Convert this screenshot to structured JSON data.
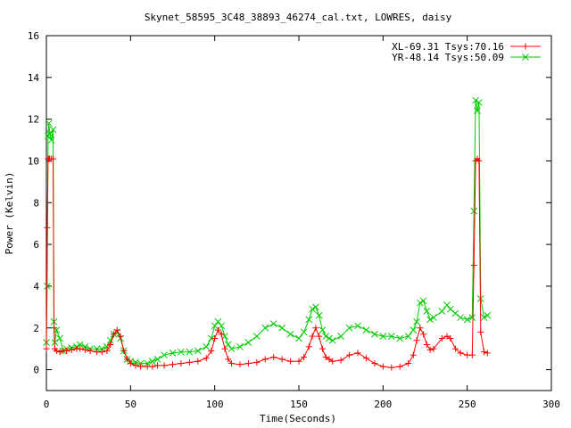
{
  "chart_data": {
    "type": "line",
    "title": "Skynet_58595_3C48_38893_46274_cal.txt, LOWRES, daisy",
    "xlabel": "Time(Seconds)",
    "ylabel": "Power (Kelvin)",
    "xlim": [
      0,
      300
    ],
    "ylim": [
      -1,
      16
    ],
    "xticks": [
      0,
      50,
      100,
      150,
      200,
      250,
      300
    ],
    "yticks": [
      0,
      2,
      4,
      6,
      8,
      10,
      12,
      14,
      16
    ],
    "grid": false,
    "legend_position": "top-right",
    "series": [
      {
        "name": "XL-69.31 Tsys:70.16",
        "color": "#ff0000",
        "marker": "plus",
        "x": [
          0,
          0.5,
          1,
          1.5,
          2,
          3,
          4,
          4.5,
          5,
          6,
          8,
          10,
          12,
          15,
          18,
          20,
          23,
          26,
          30,
          33,
          36,
          38,
          40,
          42,
          44,
          46,
          48,
          50,
          53,
          56,
          60,
          63,
          66,
          70,
          75,
          80,
          85,
          90,
          95,
          98,
          100,
          102,
          104,
          106,
          108,
          110,
          115,
          120,
          125,
          130,
          135,
          140,
          145,
          150,
          153,
          156,
          158,
          160,
          162,
          164,
          166,
          168,
          170,
          175,
          180,
          185,
          190,
          195,
          200,
          205,
          210,
          215,
          218,
          220,
          222,
          224,
          226,
          228,
          230,
          235,
          238,
          240,
          243,
          246,
          250,
          253,
          254,
          255,
          256,
          257,
          258,
          260,
          262
        ],
        "y": [
          1.0,
          6.8,
          10.1,
          10.1,
          10.1,
          10.1,
          10.1,
          2.0,
          1.0,
          0.9,
          0.85,
          0.9,
          0.9,
          0.95,
          1.0,
          1.0,
          0.95,
          0.9,
          0.85,
          0.85,
          0.9,
          1.2,
          1.7,
          1.9,
          1.6,
          0.9,
          0.5,
          0.3,
          0.2,
          0.15,
          0.15,
          0.15,
          0.2,
          0.2,
          0.25,
          0.3,
          0.35,
          0.4,
          0.55,
          0.9,
          1.5,
          1.9,
          1.7,
          1.0,
          0.5,
          0.3,
          0.25,
          0.3,
          0.35,
          0.5,
          0.6,
          0.5,
          0.4,
          0.4,
          0.6,
          1.1,
          1.6,
          2.0,
          1.6,
          1.0,
          0.6,
          0.5,
          0.4,
          0.45,
          0.7,
          0.8,
          0.55,
          0.3,
          0.15,
          0.1,
          0.15,
          0.3,
          0.7,
          1.4,
          2.0,
          1.7,
          1.2,
          0.95,
          1.0,
          1.5,
          1.6,
          1.5,
          1.0,
          0.8,
          0.7,
          0.7,
          5.0,
          10.0,
          10.1,
          10.0,
          1.8,
          0.85,
          0.8
        ]
      },
      {
        "name": "YR-48.14 Tsys:50.09",
        "color": "#00cc00",
        "marker": "cross",
        "x": [
          0,
          0.5,
          1,
          1.5,
          2,
          3,
          4,
          4.5,
          5,
          6,
          8,
          10,
          12,
          15,
          18,
          20,
          23,
          26,
          30,
          33,
          36,
          38,
          40,
          42,
          44,
          46,
          48,
          50,
          53,
          56,
          60,
          63,
          66,
          70,
          75,
          80,
          85,
          90,
          95,
          98,
          100,
          102,
          104,
          106,
          108,
          110,
          115,
          120,
          125,
          130,
          135,
          140,
          145,
          150,
          153,
          156,
          158,
          160,
          162,
          164,
          166,
          168,
          170,
          175,
          180,
          185,
          190,
          195,
          200,
          205,
          210,
          215,
          218,
          220,
          222,
          224,
          226,
          228,
          230,
          235,
          238,
          240,
          243,
          246,
          250,
          253,
          254,
          255,
          256,
          257,
          258,
          260,
          262
        ],
        "y": [
          1.3,
          4.0,
          11.2,
          11.8,
          11.3,
          11.0,
          11.5,
          2.3,
          1.3,
          1.9,
          1.5,
          0.9,
          1.0,
          1.05,
          1.1,
          1.2,
          1.1,
          1.0,
          1.0,
          1.0,
          1.1,
          1.4,
          1.7,
          1.8,
          1.5,
          0.9,
          0.5,
          0.4,
          0.35,
          0.3,
          0.3,
          0.4,
          0.5,
          0.7,
          0.8,
          0.85,
          0.85,
          0.9,
          1.1,
          1.5,
          2.1,
          2.3,
          2.1,
          1.6,
          1.2,
          1.0,
          1.1,
          1.3,
          1.6,
          2.0,
          2.2,
          2.0,
          1.7,
          1.5,
          1.8,
          2.4,
          2.9,
          3.0,
          2.6,
          1.9,
          1.6,
          1.5,
          1.4,
          1.6,
          2.0,
          2.1,
          1.9,
          1.7,
          1.6,
          1.6,
          1.5,
          1.6,
          1.9,
          2.3,
          3.2,
          3.3,
          2.8,
          2.4,
          2.5,
          2.8,
          3.1,
          2.9,
          2.7,
          2.5,
          2.4,
          2.5,
          7.6,
          12.9,
          12.4,
          12.8,
          3.4,
          2.5,
          2.6
        ]
      }
    ]
  }
}
